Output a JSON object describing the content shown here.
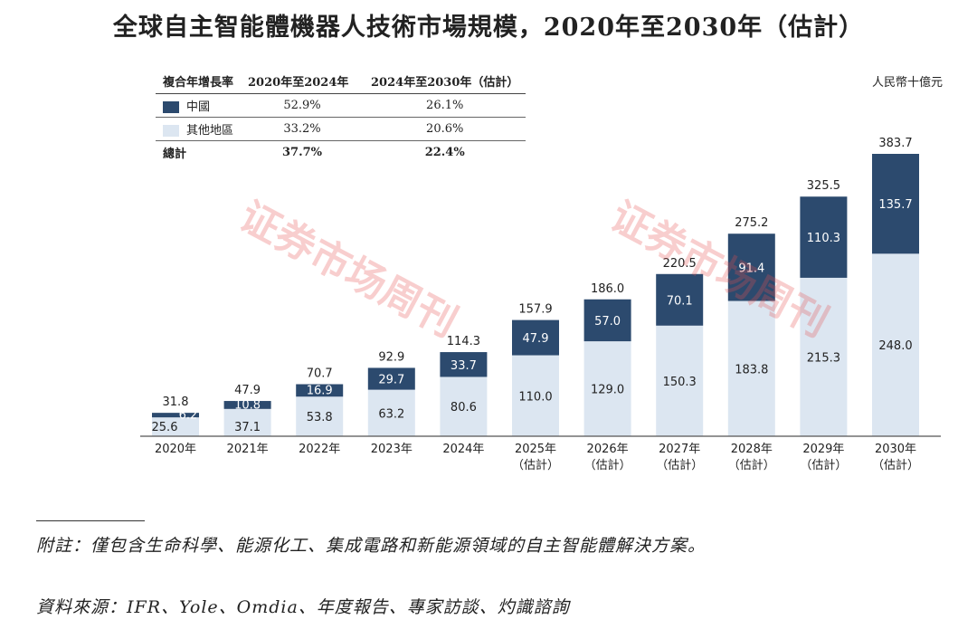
{
  "title": "全球自主智能體機器人技術市場規模，2020年至2030年（估計）",
  "unit": "人民幣十億元",
  "cagr_table": {
    "header": [
      "複合年增長率",
      "2020年至2024年",
      "2024年至2030年（估計）"
    ],
    "rows": [
      {
        "label": "中國",
        "v1": "52.9%",
        "v2": "26.1%"
      },
      {
        "label": "其他地區",
        "v1": "33.2%",
        "v2": "20.6%"
      },
      {
        "label": "總計",
        "v1": "37.7%",
        "v2": "22.4%"
      }
    ]
  },
  "colors": {
    "china": "#2c4a6e",
    "other": "#dce6f1",
    "axis": "#555555"
  },
  "chart_data": {
    "type": "bar",
    "stacked": true,
    "categories": [
      "2020年",
      "2021年",
      "2022年",
      "2023年",
      "2024年",
      "2025年",
      "2026年",
      "2027年",
      "2028年",
      "2029年",
      "2030年"
    ],
    "category_sublabels": [
      "",
      "",
      "",
      "",
      "",
      "（估計）",
      "（估計）",
      "（估計）",
      "（估計）",
      "（估計）",
      "（估計）"
    ],
    "series": [
      {
        "name": "其他地區",
        "values": [
          25.6,
          37.1,
          53.8,
          63.2,
          80.6,
          110.0,
          129.0,
          150.3,
          183.8,
          215.3,
          248.0
        ]
      },
      {
        "name": "中國",
        "values": [
          6.2,
          10.8,
          16.9,
          29.7,
          33.7,
          47.9,
          57.0,
          70.1,
          91.4,
          110.3,
          135.7
        ]
      }
    ],
    "totals": [
      31.8,
      47.9,
      70.7,
      92.9,
      114.3,
      157.9,
      186.0,
      220.5,
      275.2,
      325.5,
      383.7
    ],
    "ylim": [
      0,
      383.7
    ]
  },
  "watermark": {
    "text": "证券市场周刊"
  },
  "footnotes": {
    "note": "附註：僅包含生命科學、能源化工、集成電路和新能源領域的自主智能體解決方案。",
    "source": "資料來源：IFR、Yole、Omdia、年度報告、專家訪談、灼識諮詢"
  }
}
